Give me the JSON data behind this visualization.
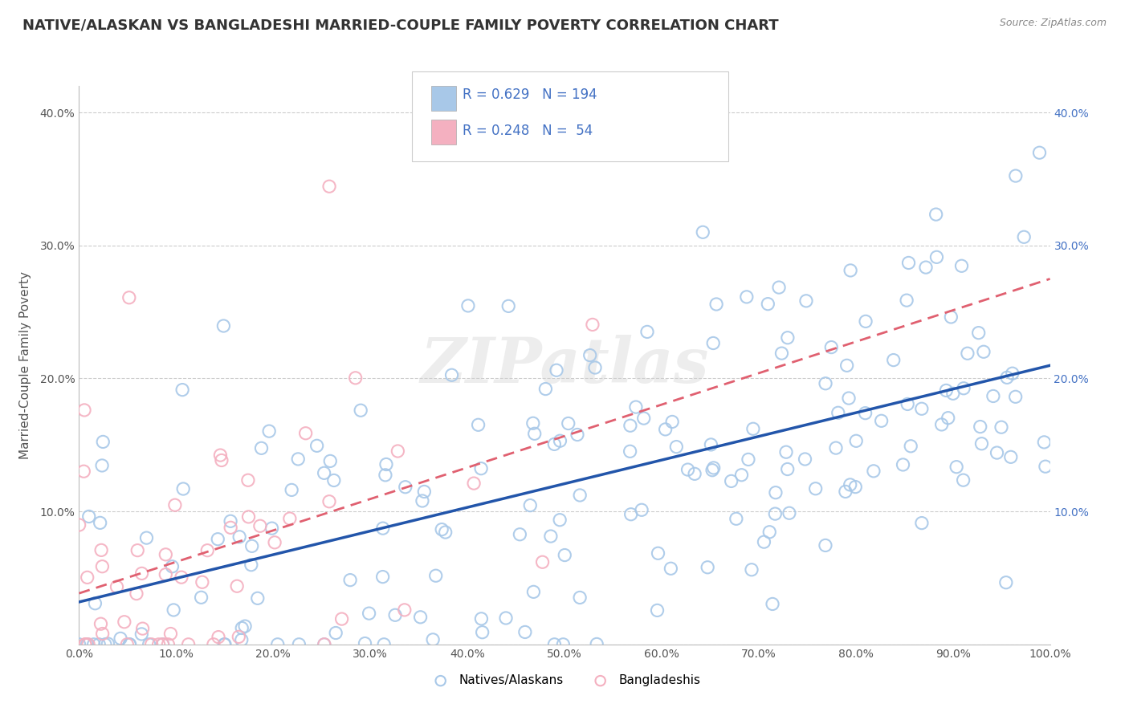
{
  "title": "NATIVE/ALASKAN VS BANGLADESHI MARRIED-COUPLE FAMILY POVERTY CORRELATION CHART",
  "source_text": "Source: ZipAtlas.com",
  "ylabel": "Married-Couple Family Poverty",
  "xlim": [
    0,
    100
  ],
  "ylim": [
    0,
    42
  ],
  "blue_color": "#a8c8e8",
  "blue_edge_color": "#a8c8e8",
  "pink_color": "#f4b0c0",
  "pink_edge_color": "#f4b0c0",
  "blue_line_color": "#2255aa",
  "pink_line_color": "#e06070",
  "right_tick_color": "#4472c4",
  "R_blue": 0.629,
  "N_blue": 194,
  "R_pink": 0.248,
  "N_pink": 54,
  "legend_label_blue": "Natives/Alaskans",
  "legend_label_pink": "Bangladeshis",
  "watermark": "ZIPatlas",
  "title_fontsize": 13,
  "axis_label_fontsize": 11,
  "tick_fontsize": 10,
  "background_color": "#ffffff",
  "grid_color": "#cccccc",
  "seed": 12345
}
